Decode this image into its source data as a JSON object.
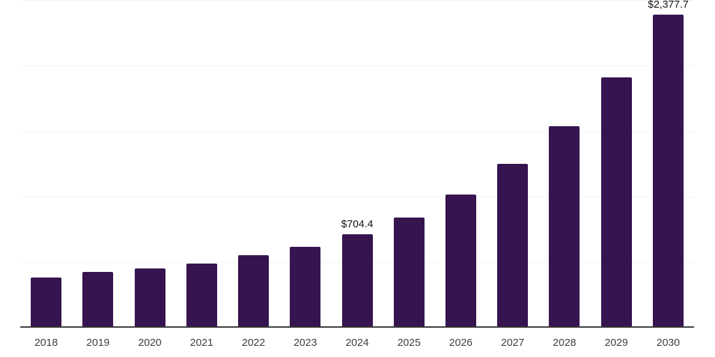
{
  "chart_data": {
    "type": "bar",
    "title": "",
    "xlabel": "",
    "ylabel": "",
    "categories": [
      "2018",
      "2019",
      "2020",
      "2021",
      "2022",
      "2023",
      "2024",
      "2025",
      "2026",
      "2027",
      "2028",
      "2029",
      "2030"
    ],
    "values": [
      370,
      416,
      440,
      481,
      540,
      609,
      704.4,
      832,
      1003,
      1237,
      1529,
      1900,
      2377.7
    ],
    "data_labels": [
      "",
      "",
      "",
      "",
      "",
      "",
      "$704.4",
      "",
      "",
      "",
      "",
      "",
      "$2,377.7"
    ],
    "ylim": [
      0,
      2500
    ],
    "gridline_step": 500,
    "grid": "horizontal",
    "legend": "none",
    "y_axis_ticks_visible": false,
    "bar_color": "#361450",
    "gridline_color": "#f2f2f2",
    "axis_line_color": "#383838",
    "tick_label_color": "#3d3d3d",
    "value_label_color": "#111111",
    "background_color": "#ffffff"
  }
}
